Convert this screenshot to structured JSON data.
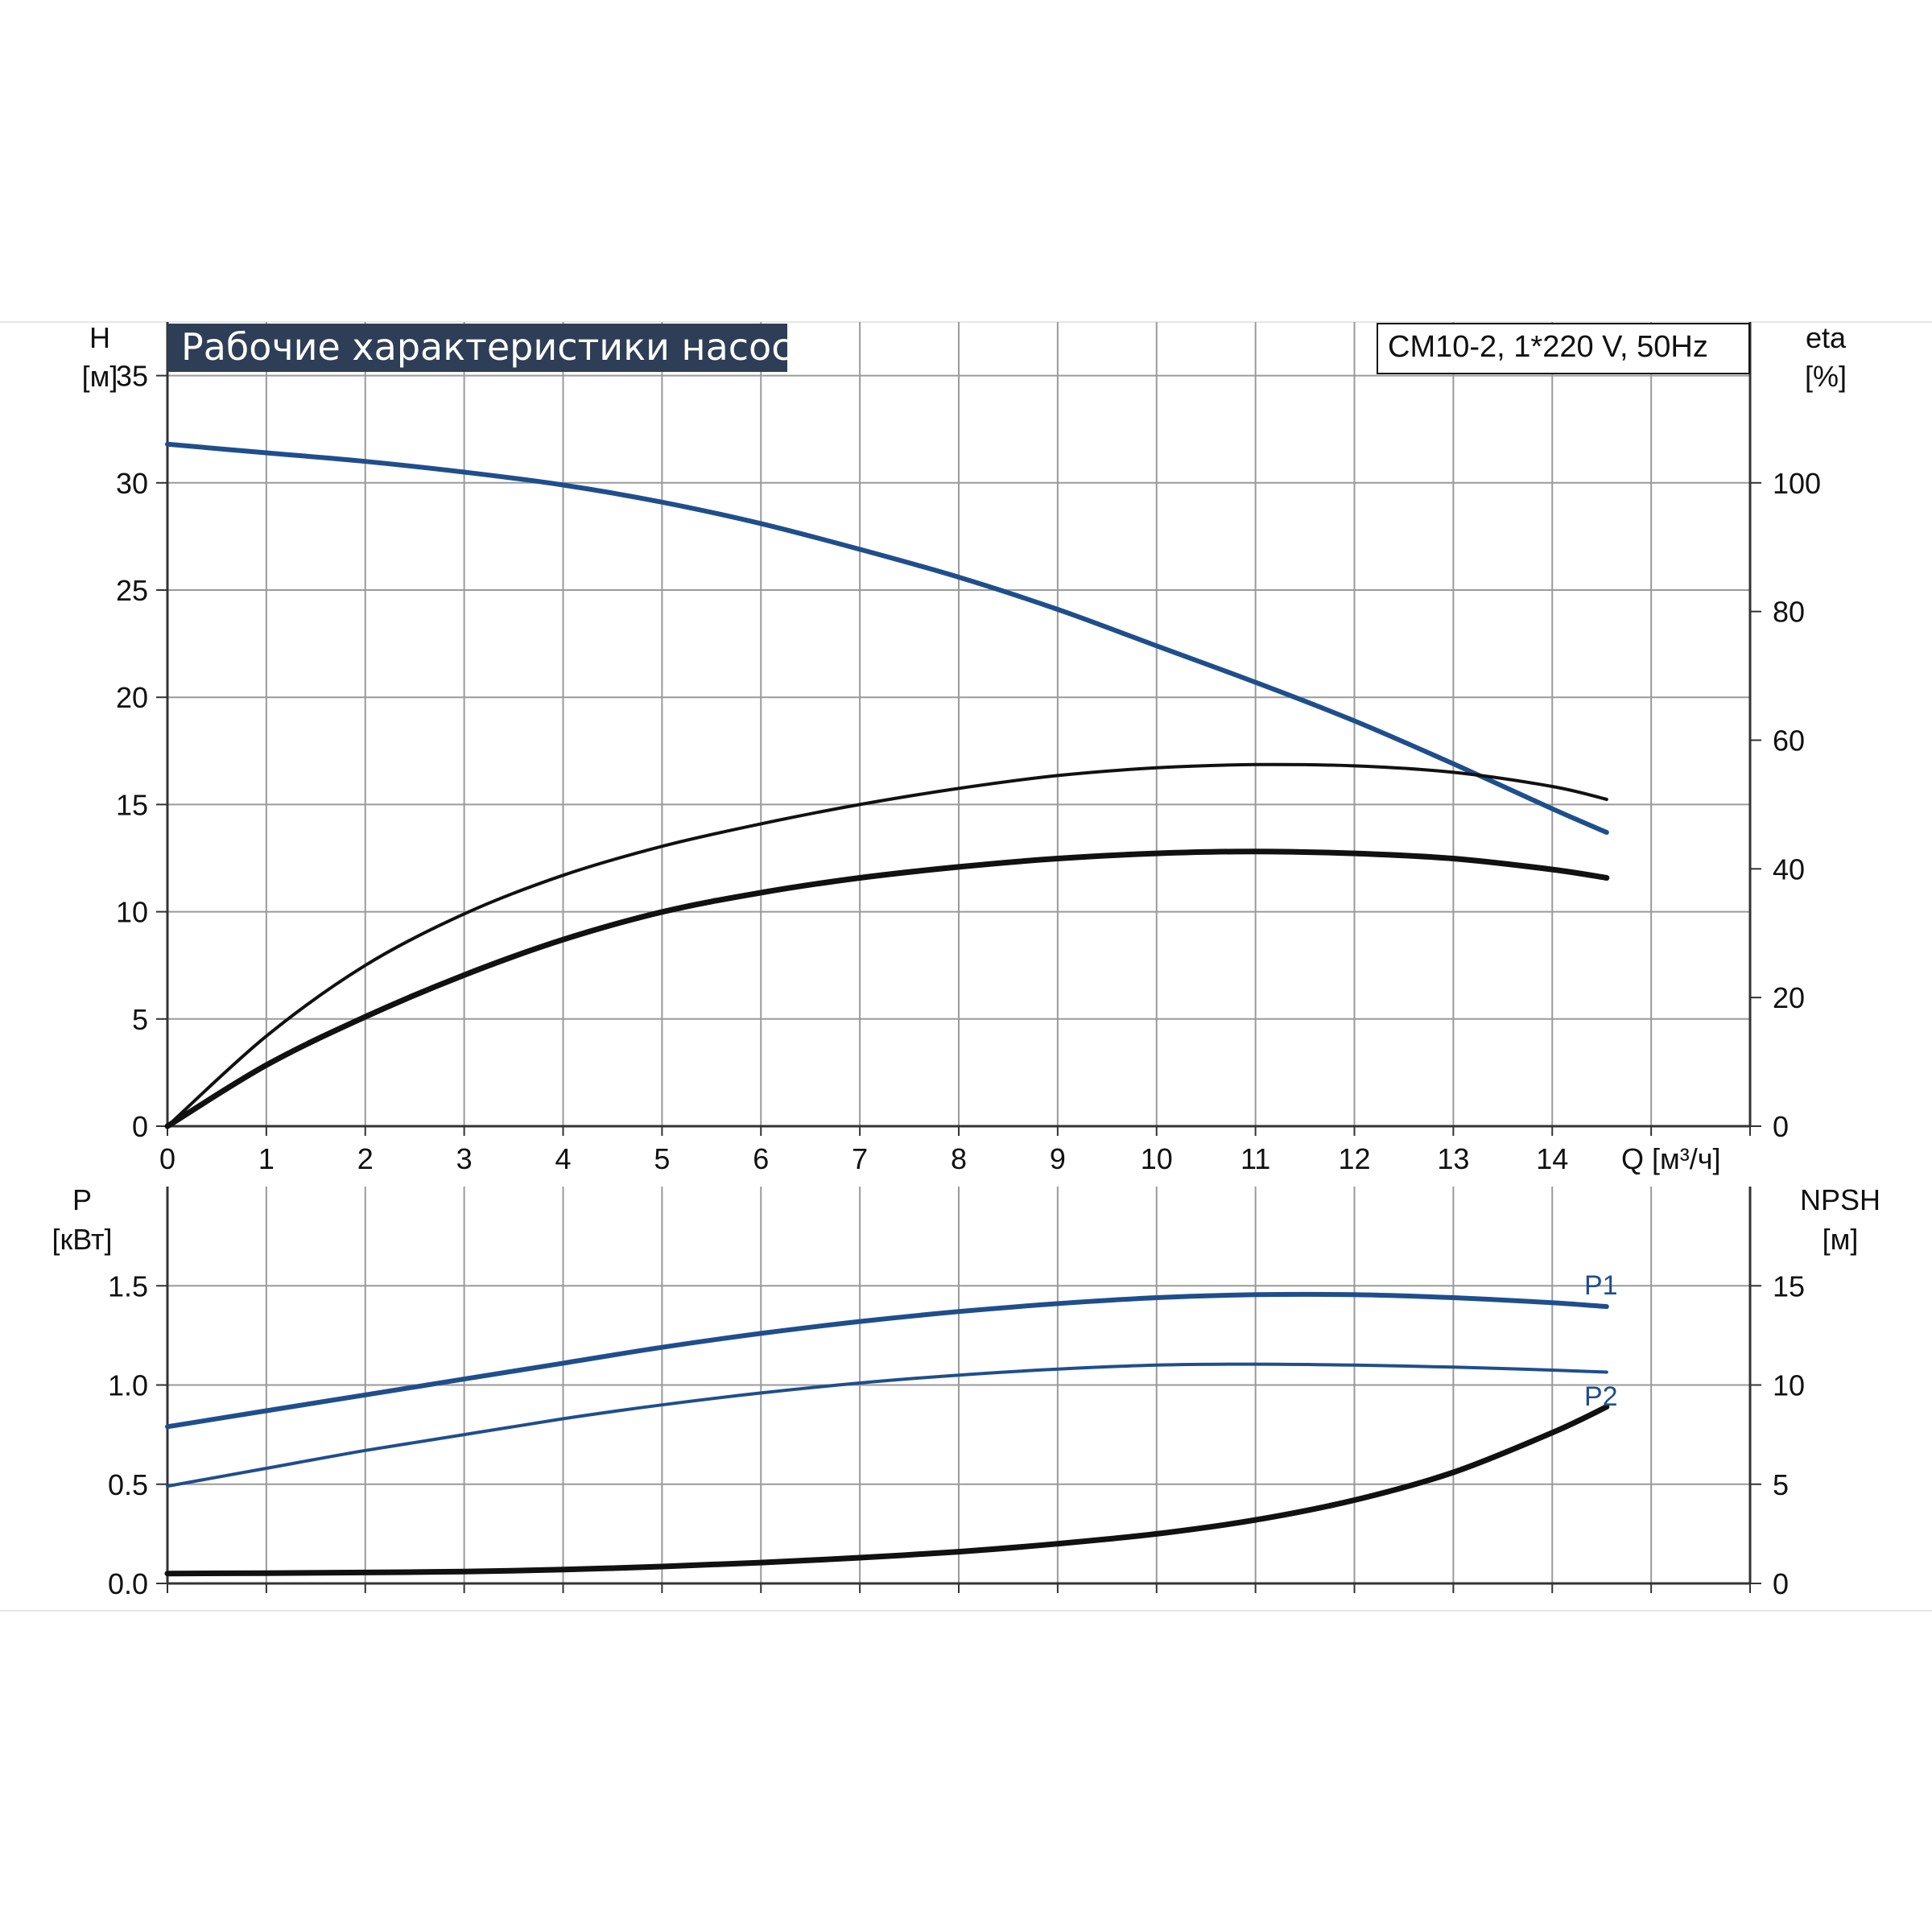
{
  "title": "Рабочие характеристики насоса",
  "model_label": "CM10-2, 1*220 V, 50Hz",
  "colors": {
    "blue": "#1f4e8c",
    "black": "#111111",
    "title_bg": "#2d3e56",
    "grid": "#9a9a9a"
  },
  "chart_data": [
    {
      "type": "line",
      "name": "performance",
      "x_axis": {
        "label": "Q [м³/ч]",
        "range": [
          0,
          16
        ],
        "ticks": [
          0,
          1,
          2,
          3,
          4,
          5,
          6,
          7,
          8,
          9,
          10,
          11,
          12,
          13,
          14
        ]
      },
      "y_left": {
        "label": "H",
        "unit": "[м]",
        "range": [
          0,
          37.5
        ],
        "ticks": [
          0,
          5,
          10,
          15,
          20,
          25,
          30,
          35
        ]
      },
      "y_right": {
        "label": "eta",
        "unit": "[%]",
        "range": [
          0,
          125
        ],
        "ticks": [
          0,
          20,
          40,
          60,
          80,
          100
        ]
      },
      "grid": true,
      "series": [
        {
          "id": "H",
          "axis": "left",
          "color": "#1f4e8c",
          "width": 6,
          "x": [
            0,
            1,
            2,
            3,
            4,
            5,
            6,
            7,
            8,
            9,
            10,
            11,
            12,
            13,
            14,
            14.55
          ],
          "y": [
            31.8,
            31.4,
            31.0,
            30.5,
            29.9,
            29.1,
            28.1,
            26.9,
            25.6,
            24.1,
            22.4,
            20.7,
            18.9,
            16.9,
            14.8,
            13.7
          ]
        },
        {
          "id": "eta_pump",
          "axis": "right",
          "color": "#111111",
          "width": 4,
          "x": [
            0,
            1,
            2,
            3,
            4,
            5,
            6,
            7,
            8,
            9,
            10,
            11,
            12,
            13,
            14,
            14.55
          ],
          "y": [
            0,
            14,
            25,
            33,
            39,
            43.5,
            47,
            50,
            52.5,
            54.5,
            55.7,
            56.2,
            56.0,
            55.0,
            52.8,
            50.8
          ]
        },
        {
          "id": "eta_total",
          "axis": "right",
          "color": "#111111",
          "width": 7,
          "x": [
            0,
            1,
            2,
            3,
            4,
            5,
            6,
            7,
            8,
            9,
            10,
            11,
            12,
            13,
            14,
            14.55
          ],
          "y": [
            0,
            9.5,
            17,
            23.5,
            29,
            33.3,
            36.3,
            38.6,
            40.3,
            41.6,
            42.4,
            42.7,
            42.4,
            41.6,
            39.9,
            38.6
          ]
        }
      ]
    },
    {
      "type": "line",
      "name": "power_npsh",
      "x_axis": {
        "range": [
          0,
          16
        ]
      },
      "y_left": {
        "label": "P",
        "unit": "[кВт]",
        "range": [
          0,
          2.0
        ],
        "ticks": [
          "0.0",
          "0.5",
          "1.0",
          "1.5"
        ]
      },
      "y_right": {
        "label": "NPSH",
        "unit": "[м]",
        "range": [
          0,
          20
        ],
        "ticks": [
          0,
          5,
          10,
          15
        ]
      },
      "grid": true,
      "series": [
        {
          "id": "P1",
          "label": "P1",
          "axis": "left",
          "color": "#1f4e8c",
          "width": 6,
          "x": [
            0,
            1,
            2,
            3,
            4,
            5,
            6,
            7,
            8,
            9,
            10,
            11,
            12,
            13,
            14,
            14.55
          ],
          "y": [
            0.79,
            0.87,
            0.95,
            1.03,
            1.11,
            1.19,
            1.26,
            1.32,
            1.37,
            1.41,
            1.44,
            1.455,
            1.455,
            1.44,
            1.415,
            1.395
          ]
        },
        {
          "id": "P2",
          "label": "P2",
          "axis": "left",
          "color": "#1f4e8c",
          "width": 4,
          "x": [
            0,
            1,
            2,
            3,
            4,
            5,
            6,
            7,
            8,
            9,
            10,
            11,
            12,
            13,
            14,
            14.55
          ],
          "y": [
            0.49,
            0.58,
            0.67,
            0.75,
            0.83,
            0.9,
            0.96,
            1.01,
            1.05,
            1.08,
            1.1,
            1.105,
            1.1,
            1.09,
            1.075,
            1.065
          ]
        },
        {
          "id": "NPSH",
          "axis": "right",
          "color": "#111111",
          "width": 7,
          "x": [
            0,
            1,
            2,
            3,
            4,
            5,
            6,
            7,
            8,
            9,
            10,
            11,
            12,
            13,
            14,
            14.55
          ],
          "y": [
            0.5,
            0.52,
            0.55,
            0.6,
            0.7,
            0.85,
            1.05,
            1.3,
            1.6,
            2.0,
            2.5,
            3.2,
            4.2,
            5.6,
            7.6,
            8.9
          ]
        }
      ]
    }
  ]
}
